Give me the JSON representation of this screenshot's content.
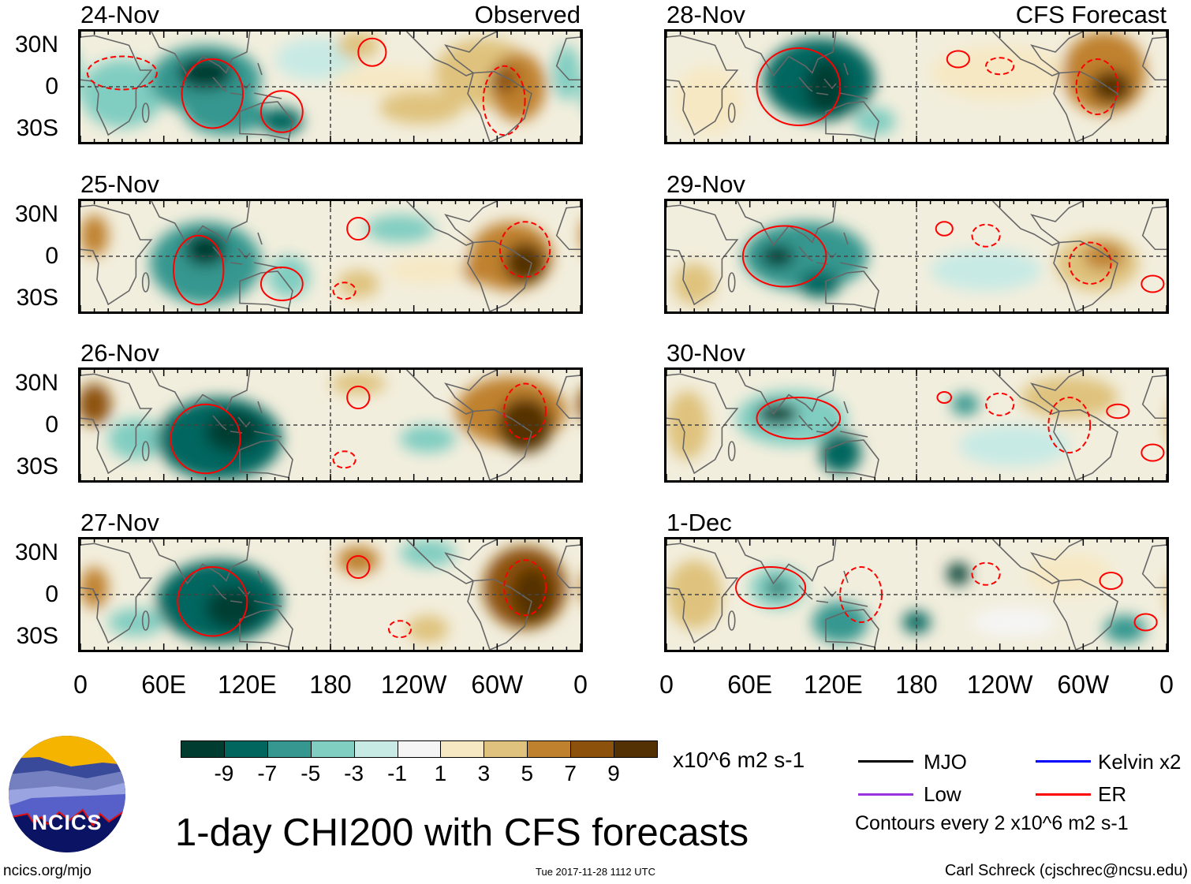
{
  "panels": [
    {
      "date": "24-Nov",
      "label": "Observed"
    },
    {
      "date": "25-Nov",
      "label": ""
    },
    {
      "date": "26-Nov",
      "label": ""
    },
    {
      "date": "27-Nov",
      "label": ""
    },
    {
      "date": "28-Nov",
      "label": "CFS Forecast"
    },
    {
      "date": "29-Nov",
      "label": ""
    },
    {
      "date": "30-Nov",
      "label": ""
    },
    {
      "date": "1-Dec",
      "label": ""
    }
  ],
  "chart_data": {
    "type": "heatmap",
    "title": "1-day CHI200 with CFS forecasts",
    "lat_ticks": [
      "30N",
      "0",
      "30S"
    ],
    "lon_ticks": [
      "0",
      "60E",
      "120E",
      "180",
      "120W",
      "60W",
      "0"
    ],
    "colorbar": {
      "labels": [
        "-9",
        "-7",
        "-5",
        "-3",
        "-1",
        "1",
        "3",
        "5",
        "7",
        "9"
      ],
      "colors": [
        "#003c30",
        "#01665e",
        "#35978f",
        "#80cdc1",
        "#c7eae5",
        "#f5f5f5",
        "#f6e8c3",
        "#dfc27d",
        "#bf812d",
        "#8c510a",
        "#543005"
      ],
      "units": "x10^6 m2 s-1"
    },
    "contour_legend": [
      {
        "name": "MJO",
        "color": "#000000"
      },
      {
        "name": "Kelvin x2",
        "color": "#0000ff"
      },
      {
        "name": "Low",
        "color": "#9933dd"
      },
      {
        "name": "ER",
        "color": "#ff0000"
      }
    ],
    "contour_note": "Contours every 2 x10^6 m2 s-1"
  },
  "footer": {
    "site": "ncics.org/mjo",
    "timestamp": "Tue 2017-11-28 1112 UTC",
    "author": "Carl Schreck (cjschrec@ncsu.edu)",
    "logo_text": "NCICS"
  }
}
